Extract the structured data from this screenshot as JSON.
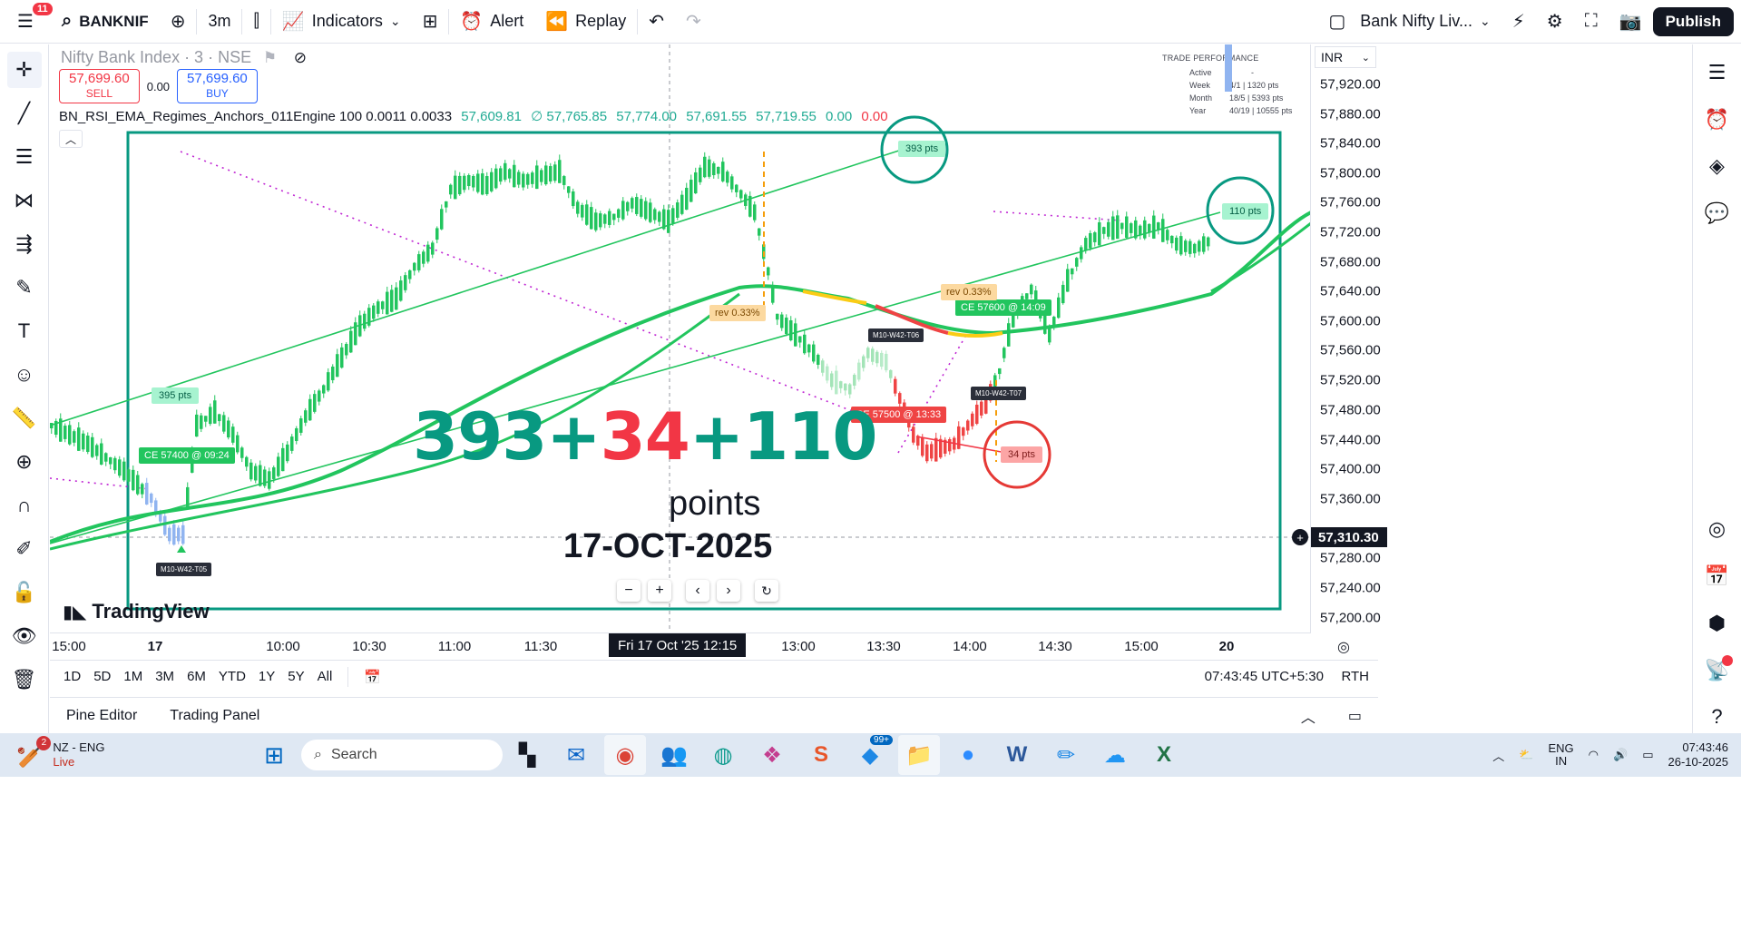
{
  "toolbar": {
    "notifications": "11",
    "symbol": "BANKNIF",
    "interval": "3m",
    "indicators": "Indicators",
    "alert": "Alert",
    "replay": "Replay",
    "layout_name": "Bank Nifty Liv...",
    "publish": "Publish"
  },
  "legend": {
    "symbol": "Nifty Bank Index · 3 · NSE",
    "sell_price": "57,699.60",
    "sell_label": "SELL",
    "spread": "0.00",
    "buy_price": "57,699.60",
    "buy_label": "BUY",
    "indicator_name": "BN_RSI_EMA_Regimes_Anchors_011Engine 100 0.0011 0.0033",
    "ind_values": [
      "57,609.81",
      "∅ 57,765.85",
      "57,774.00",
      "57,691.55",
      "57,719.55",
      "0.00"
    ],
    "ind_last": "0.00"
  },
  "trade_performance": {
    "title": "TRADE PERFORMANCE",
    "rows": [
      {
        "k": "Active",
        "v": "-"
      },
      {
        "k": "Week",
        "v": "4/1 | 1320 pts"
      },
      {
        "k": "Month",
        "v": "18/5 | 5393 pts"
      },
      {
        "k": "Year",
        "v": "40/19 | 10555 pts"
      }
    ]
  },
  "price_scale": {
    "currency": "INR",
    "labels": [
      "57,920.00",
      "57,880.00",
      "57,840.00",
      "57,800.00",
      "57,760.00",
      "57,720.00",
      "57,680.00",
      "57,640.00",
      "57,600.00",
      "57,560.00",
      "57,520.00",
      "57,480.00",
      "57,440.00",
      "57,400.00",
      "57,360.00",
      "57,280.00",
      "57,240.00",
      "57,200.00"
    ],
    "current_price": "57,310.30"
  },
  "time_scale": {
    "labels": [
      "15:00",
      "17",
      "10:00",
      "10:30",
      "11:00",
      "11:30",
      "13:00",
      "13:30",
      "14:00",
      "14:30",
      "15:00",
      "20"
    ],
    "crosshair": "Fri 17 Oct '25   12:15"
  },
  "annotations": {
    "big_a": "393+",
    "big_b": "34",
    "big_c": "+110",
    "points": "points",
    "date": "17-OCT-2025",
    "pts_393": "393 pts",
    "pts_110": "110 pts",
    "pts_34": "34 pts",
    "pts_395": "395 pts",
    "ce_0924": "CE 57400 @ 09:24",
    "ce_1409": "CE 57600 @ 14:09",
    "pe_1333": "PE 57500 @ 13:33",
    "rev_1": "rev 0.33%",
    "rev_2": "rev 0.33%",
    "tag_t05": "M10-W42-T05",
    "tag_t06": "M10-W42-T06",
    "tag_t07": "M10-W42-T07",
    "watermark": "TradingView"
  },
  "range_bar": {
    "ranges": [
      "1D",
      "5D",
      "1M",
      "3M",
      "6M",
      "YTD",
      "1Y",
      "5Y",
      "All"
    ],
    "clock": "07:43:45 UTC+5:30",
    "session": "RTH"
  },
  "bottom_panel": {
    "tabs": [
      "Pine Editor",
      "Trading Panel"
    ]
  },
  "taskbar": {
    "weather_badge": "2",
    "weather_line1": "NZ - ENG",
    "weather_line2": "Live",
    "search_placeholder": "Search",
    "badge_99": "99+",
    "lang_line1": "ENG",
    "lang_line2": "IN",
    "time": "07:43:46",
    "date": "26-10-2025"
  },
  "colors": {
    "up": "#22c55e",
    "down": "#22c55e",
    "accent_teal": "#089981",
    "red": "#f23645"
  }
}
